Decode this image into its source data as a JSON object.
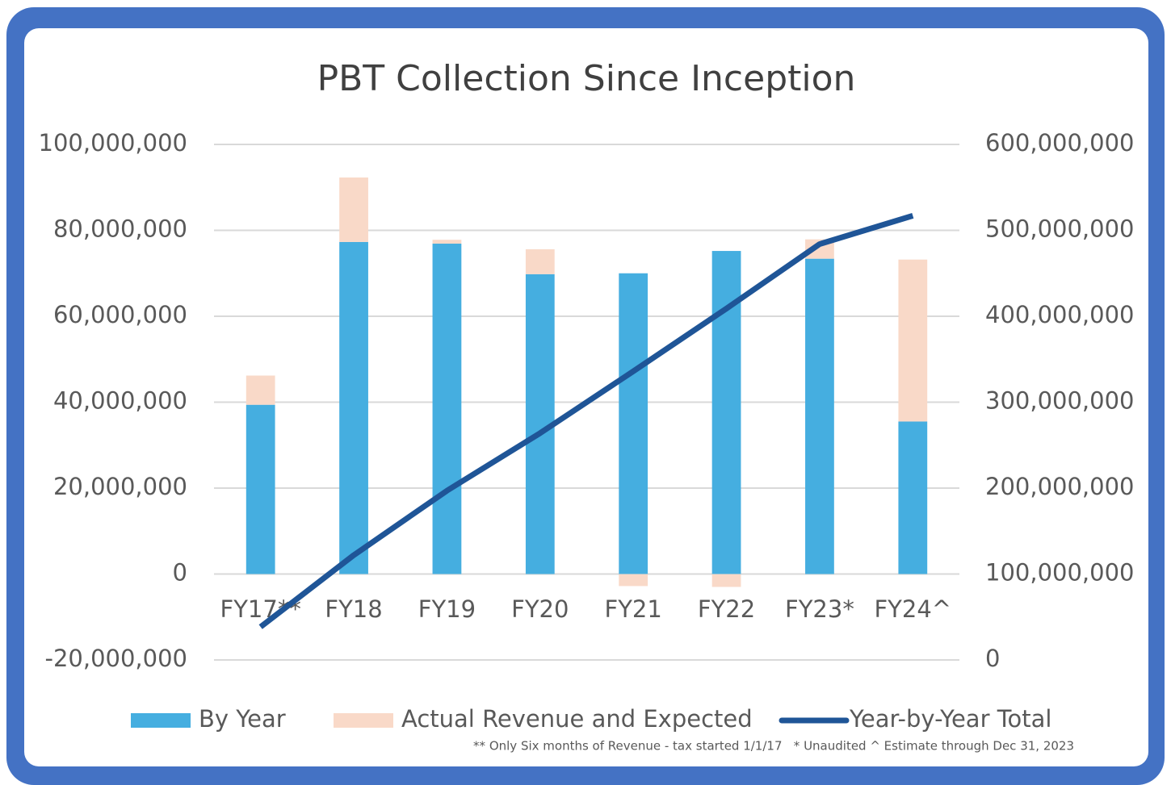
{
  "chart_data": {
    "type": "bar",
    "title": "PBT Collection Since Inception",
    "annotations": [
      "** Only Six months of Revenue - tax started 1/1/17   * Unaudited ^ Estimate through Dec 31, 2023"
    ],
    "categories": [
      "FY17**",
      "FY18",
      "FY19",
      "FY20",
      "FY21",
      "FY22",
      "FY23*",
      "FY24^"
    ],
    "series": [
      {
        "name": "By Year",
        "type": "bar",
        "color": "#45aee0",
        "values": [
          39400000,
          77300000,
          76900000,
          69800000,
          70000000,
          75200000,
          73400000,
          35500000
        ]
      },
      {
        "name": "Actual Revenue and Expected",
        "type": "bar",
        "color": "#f9d9c8",
        "values": [
          6800000,
          15000000,
          900000,
          5800000,
          -2800000,
          -3000000,
          4500000,
          37700000
        ]
      },
      {
        "name": "Year-by-Year Total",
        "type": "line",
        "axis": "y2",
        "color": "#1f5597",
        "values": [
          38500000,
          122000000,
          197000000,
          264000000,
          336000000,
          409000000,
          484000000,
          517000000
        ]
      }
    ],
    "stacked": true,
    "ylim": [
      -20000000,
      100000000
    ],
    "yticks": [
      {
        "value": -20000000,
        "label": "-20,000,000"
      },
      0,
      {
        "value": 20000000,
        "label": "20,000,000"
      },
      {
        "value": 40000000,
        "label": "40,000,000"
      },
      {
        "value": 60000000,
        "label": "60,000,000"
      },
      {
        "value": 80000000,
        "label": "80,000,000"
      },
      {
        "value": 100000000,
        "label": "100,000,000"
      }
    ],
    "y2lim": [
      0,
      600000000
    ],
    "y2ticks": [
      0,
      {
        "value": 100000000,
        "label": "100,000,000"
      },
      {
        "value": 200000000,
        "label": "200,000,000"
      },
      {
        "value": 300000000,
        "label": "300,000,000"
      },
      {
        "value": 400000000,
        "label": "400,000,000"
      },
      {
        "value": 500000000,
        "label": "500,000,000"
      },
      {
        "value": 600000000,
        "label": "600,000,000"
      }
    ],
    "grid": true,
    "legend": "bottom"
  }
}
